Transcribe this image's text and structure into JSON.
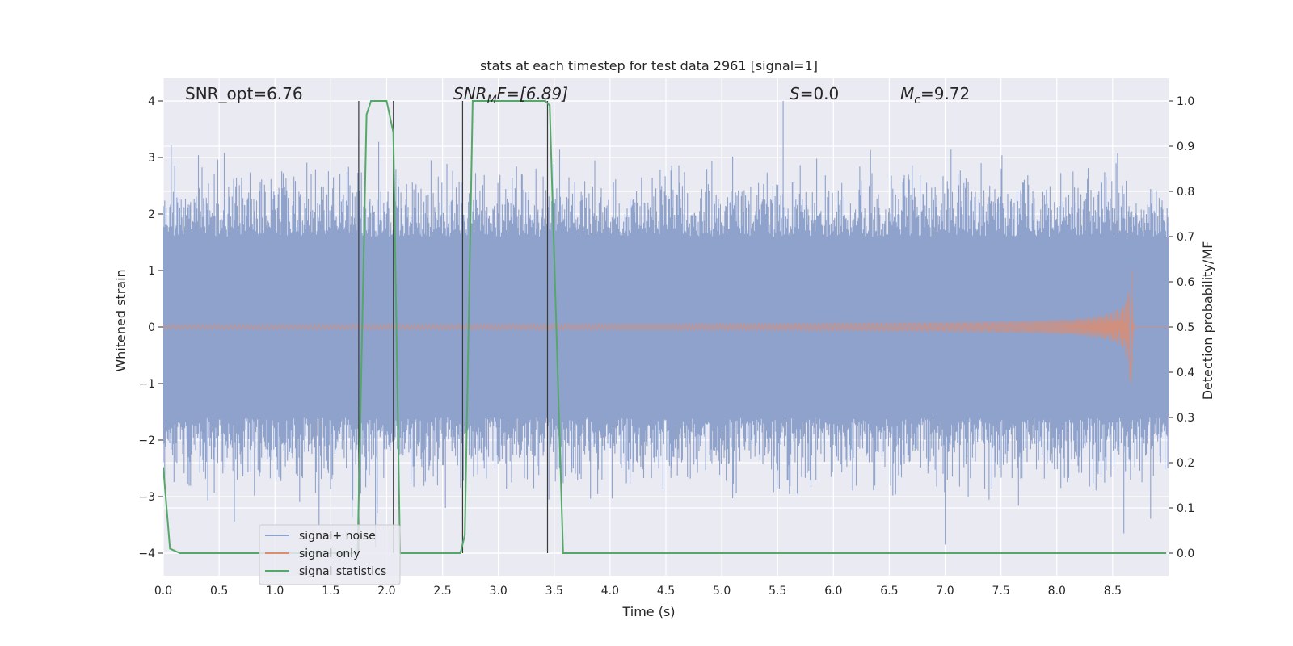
{
  "chart_data": {
    "type": "line",
    "title": "stats at each timestep for test data 2961 [signal=1]",
    "xlabel": "Time (s)",
    "ylabel_left": "Whitened strain",
    "ylabel_right": "Detection probability/MF",
    "xlim": [
      0.0,
      9.0
    ],
    "ylim_left": [
      -4.4,
      4.4
    ],
    "ylim_right": [
      -0.05,
      1.05
    ],
    "x_ticks": [
      "0.0",
      "0.5",
      "1.0",
      "1.5",
      "2.0",
      "2.5",
      "3.0",
      "3.5",
      "4.0",
      "4.5",
      "5.0",
      "5.5",
      "6.0",
      "6.5",
      "7.0",
      "7.5",
      "8.0",
      "8.5"
    ],
    "x_tick_values": [
      0,
      0.5,
      1,
      1.5,
      2,
      2.5,
      3,
      3.5,
      4,
      4.5,
      5,
      5.5,
      6,
      6.5,
      7,
      7.5,
      8,
      8.5
    ],
    "y_left_ticks": [
      "4",
      "3",
      "2",
      "1",
      "0",
      "−1",
      "−2",
      "−3",
      "−4"
    ],
    "y_left_tick_values": [
      4,
      3,
      2,
      1,
      0,
      -1,
      -2,
      -3,
      -4
    ],
    "y_right_ticks": [
      "1.0",
      "0.9",
      "0.8",
      "0.7",
      "0.6",
      "0.5",
      "0.4",
      "0.3",
      "0.2",
      "0.1",
      "0.0"
    ],
    "y_right_tick_values": [
      1.0,
      0.9,
      0.8,
      0.7,
      0.6,
      0.5,
      0.4,
      0.3,
      0.2,
      0.1,
      0.0
    ],
    "grid": true,
    "legend_position": "lower-left",
    "annotations": {
      "snr_opt": "SNR_opt=6.76",
      "snr_mf_main": "SNR",
      "snr_mf_sub": "M",
      "snr_mf_rest": "F=[6.89]",
      "s_var": "S",
      "s_val": "=0.0",
      "mc_var": "M",
      "mc_sub": "c",
      "mc_val": "=9.72"
    },
    "series": [
      {
        "name": "signal+ noise",
        "color": "#8ea2cc",
        "kind": "noise",
        "t_range": [
          0.0,
          9.0
        ],
        "core_amplitude": 1.6,
        "peak_amplitude_max": 4.0,
        "notable_peaks": [
          [
            1.75,
            3.35
          ],
          [
            1.9,
            -3.9
          ],
          [
            5.55,
            4.0
          ],
          [
            7.0,
            -3.85
          ],
          [
            8.6,
            -3.65
          ]
        ]
      },
      {
        "name": "signal only",
        "color": "#dd8c6f",
        "kind": "chirp",
        "t_range": [
          0.0,
          8.7
        ],
        "amplitude_start": 0.02,
        "amplitude_end": 1.05,
        "merger_time": 8.67
      },
      {
        "name": "signal statistics",
        "color": "#55a868",
        "axis": "right",
        "x": [
          0.0,
          0.06,
          0.15,
          1.72,
          1.74,
          1.82,
          1.86,
          2.0,
          2.06,
          2.12,
          2.22,
          2.66,
          2.7,
          2.77,
          3.42,
          3.46,
          3.58,
          8.98
        ],
        "y": [
          0.19,
          0.01,
          0.0,
          0.0,
          0.0,
          0.97,
          1.0,
          1.0,
          0.93,
          0.0,
          0.0,
          0.0,
          0.04,
          1.0,
          1.0,
          0.99,
          0.0,
          0.0
        ]
      }
    ],
    "vertical_lines": [
      1.75,
      2.06,
      2.68,
      3.44
    ]
  }
}
